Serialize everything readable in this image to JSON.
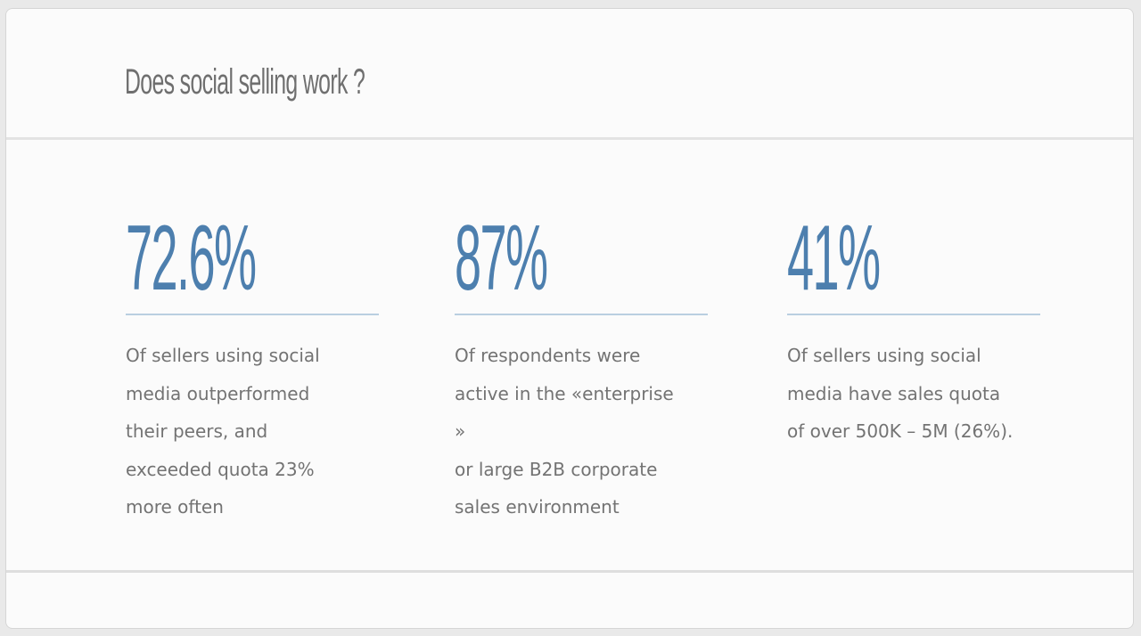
{
  "slide": {
    "title": "Does social selling work ?",
    "stats": [
      {
        "value": "72.6%",
        "description": "Of sellers using social\nmedia outperformed\ntheir peers, and\nexceeded quota 23%\nmore often"
      },
      {
        "value": "87%",
        "description": "Of respondents were\nactive in the «enterprise »\nor large B2B corporate\nsales environment"
      },
      {
        "value": "41%",
        "description": "Of sellers using social\nmedia have sales quota\nof over 500K – 5M (26%)."
      }
    ]
  },
  "colors": {
    "accent": "#4d7fae",
    "text": "#737373",
    "title": "#6f6f6f"
  }
}
